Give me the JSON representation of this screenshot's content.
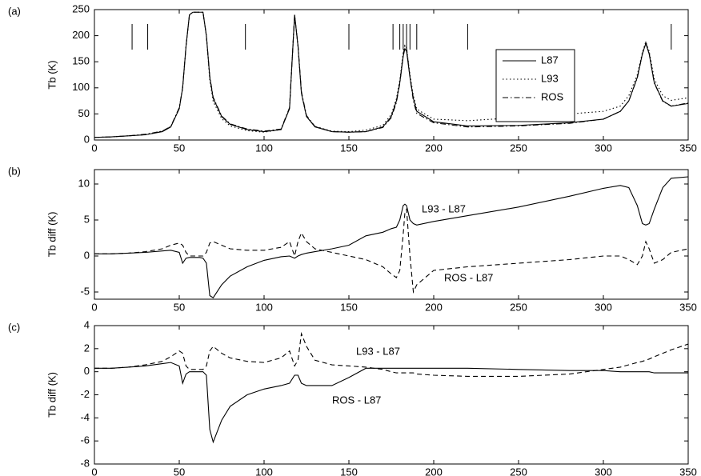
{
  "chart_data": [
    {
      "type": "line",
      "panel_label": "(a)",
      "ylabel": "Tb (K)",
      "x": [
        0,
        10,
        20,
        30,
        40,
        45,
        50,
        52,
        54,
        56,
        58,
        60,
        62,
        64,
        66,
        68,
        70,
        75,
        80,
        90,
        100,
        110,
        115,
        118,
        120,
        122,
        125,
        130,
        140,
        150,
        160,
        170,
        175,
        178,
        180,
        182,
        183,
        184,
        186,
        188,
        190,
        200,
        220,
        250,
        280,
        300,
        310,
        315,
        320,
        323,
        325,
        327,
        330,
        335,
        340,
        350
      ],
      "series": [
        {
          "name": "L87",
          "color": "#000000",
          "style": "solid",
          "values": [
            5,
            6,
            8,
            10,
            16,
            25,
            60,
            100,
            180,
            240,
            245,
            245,
            245,
            245,
            200,
            120,
            80,
            45,
            30,
            20,
            16,
            20,
            60,
            240,
            180,
            90,
            45,
            25,
            16,
            15,
            16,
            25,
            45,
            75,
            110,
            160,
            175,
            170,
            120,
            80,
            55,
            35,
            27,
            28,
            33,
            40,
            55,
            75,
            120,
            165,
            185,
            165,
            110,
            75,
            65,
            70
          ]
        },
        {
          "name": "L93",
          "color": "#000000",
          "style": "dotted",
          "values": [
            5,
            6,
            8,
            10,
            17,
            26,
            60,
            99,
            180,
            240,
            245,
            245,
            245,
            245,
            199,
            115,
            74,
            41,
            27,
            18,
            15,
            20,
            60,
            240,
            180,
            90,
            45,
            26,
            17,
            16,
            19,
            28,
            49,
            79,
            115,
            167,
            182,
            177,
            125,
            85,
            59,
            40,
            37,
            43,
            50,
            55,
            65,
            85,
            125,
            168,
            188,
            170,
            117,
            85,
            76,
            81
          ]
        },
        {
          "name": "ROS",
          "color": "#000000",
          "style": "dashdot",
          "values": [
            5,
            6,
            8,
            11,
            17,
            26,
            62,
            101,
            180,
            240,
            245,
            245,
            245,
            245,
            200,
            122,
            82,
            46,
            31,
            21,
            17,
            21,
            62,
            240,
            182,
            93,
            47,
            26,
            16,
            15,
            16,
            24,
            43,
            72,
            108,
            163,
            181,
            176,
            120,
            75,
            51,
            33,
            25,
            27,
            32,
            40,
            55,
            75,
            119,
            165,
            187,
            166,
            109,
            74,
            65,
            71
          ]
        }
      ],
      "freq_marks": [
        22.2,
        31.4,
        89,
        150,
        176,
        180,
        182,
        184,
        186,
        190,
        220,
        340
      ],
      "legend": "right",
      "xlim": [
        0,
        350
      ],
      "ylim": [
        0,
        250
      ],
      "xticks": [
        0,
        50,
        100,
        150,
        200,
        250,
        300,
        350
      ],
      "yticks": [
        0,
        50,
        100,
        150,
        200,
        250
      ]
    },
    {
      "type": "line",
      "panel_label": "(b)",
      "ylabel": "Tb diff (K)",
      "x": [
        0,
        10,
        20,
        30,
        40,
        45,
        50,
        52,
        54,
        56,
        58,
        60,
        62,
        64,
        66,
        68,
        70,
        75,
        80,
        90,
        100,
        110,
        115,
        118,
        120,
        122,
        125,
        130,
        140,
        150,
        160,
        170,
        175,
        178,
        180,
        182,
        183,
        184,
        186,
        188,
        190,
        200,
        220,
        250,
        280,
        300,
        310,
        315,
        320,
        323,
        325,
        327,
        330,
        335,
        340,
        350
      ],
      "series": [
        {
          "color": "#000000",
          "style": "solid",
          "values": [
            0.3,
            0.3,
            0.4,
            0.5,
            0.7,
            0.8,
            0.5,
            -1,
            -0.3,
            -0.2,
            -0.2,
            -0.2,
            -0.2,
            -0.3,
            -1,
            -5.5,
            -5.8,
            -4,
            -2.8,
            -1.5,
            -0.6,
            -0.1,
            0,
            -0.3,
            0,
            0.2,
            0.4,
            0.6,
            1,
            1.5,
            2.8,
            3.3,
            3.8,
            4,
            5,
            7,
            7.2,
            7,
            5,
            4.5,
            4.3,
            4.8,
            5.6,
            6.8,
            8.3,
            9.4,
            9.8,
            9.5,
            7,
            4.5,
            4.3,
            4.5,
            6.5,
            9.5,
            10.8,
            11
          ]
        },
        {
          "color": "#000000",
          "style": "dashed",
          "values": [
            0.3,
            0.3,
            0.4,
            0.6,
            1,
            1.5,
            1.8,
            1.5,
            0.5,
            0,
            0,
            0,
            0,
            0,
            0.5,
            1.8,
            2,
            1.5,
            1,
            0.8,
            0.8,
            1.2,
            2,
            0,
            2,
            3.2,
            2,
            1,
            0.5,
            0,
            -0.5,
            -1.5,
            -2.5,
            -3,
            -2,
            3,
            6,
            6.5,
            0,
            -5,
            -4,
            -2,
            -1.5,
            -1,
            -0.5,
            0,
            0,
            -0.5,
            -1.2,
            0,
            2,
            1,
            -1,
            -0.5,
            0.5,
            1
          ]
        }
      ],
      "annotations": [
        "L93 - L87",
        "ROS - L87"
      ],
      "xlim": [
        0,
        350
      ],
      "ylim": [
        -6,
        12
      ],
      "xticks": [
        0,
        50,
        100,
        150,
        200,
        250,
        300,
        350
      ],
      "yticks": [
        -5,
        0,
        5,
        10
      ]
    },
    {
      "type": "line",
      "panel_label": "(c)",
      "ylabel": "Tb diff (K)",
      "x": [
        0,
        10,
        20,
        30,
        40,
        45,
        50,
        52,
        54,
        56,
        58,
        60,
        62,
        64,
        66,
        68,
        70,
        75,
        80,
        90,
        100,
        110,
        115,
        118,
        120,
        122,
        125,
        130,
        140,
        150,
        160,
        170,
        175,
        178,
        180,
        182,
        183,
        184,
        186,
        188,
        190,
        200,
        220,
        250,
        280,
        300,
        310,
        315,
        320,
        323,
        325,
        327,
        330,
        335,
        340,
        350
      ],
      "series": [
        {
          "color": "#000000",
          "style": "dashed",
          "values": [
            0.3,
            0.3,
            0.4,
            0.6,
            0.9,
            1.3,
            1.8,
            1.6,
            0.5,
            0.2,
            0.2,
            0.2,
            0.2,
            0.2,
            0.5,
            1.8,
            2.2,
            1.6,
            1.2,
            0.9,
            0.8,
            1.2,
            1.8,
            0.5,
            1,
            3.3,
            2.2,
            1,
            0.6,
            0.5,
            0.4,
            0.2,
            0,
            -0.1,
            -0.1,
            -0.1,
            -0.1,
            -0.1,
            -0.1,
            -0.1,
            -0.2,
            -0.3,
            -0.4,
            -0.4,
            -0.2,
            0.2,
            0.4,
            0.6,
            0.8,
            0.9,
            1,
            1.1,
            1.3,
            1.6,
            1.9,
            2.4
          ]
        },
        {
          "color": "#000000",
          "style": "solid",
          "values": [
            0.3,
            0.3,
            0.4,
            0.5,
            0.7,
            0.8,
            0.5,
            -1,
            -0.2,
            0,
            0,
            0,
            0,
            0,
            -0.3,
            -5,
            -6.1,
            -4.2,
            -3,
            -2,
            -1.5,
            -1.2,
            -1,
            -0.3,
            -0.3,
            -1,
            -1.2,
            -1.2,
            -1.2,
            -0.5,
            0.3,
            0.3,
            0.3,
            0.3,
            0.3,
            0.3,
            0.3,
            0.3,
            0.3,
            0.3,
            0.3,
            0.3,
            0.3,
            0.2,
            0.1,
            0.1,
            0,
            0,
            0,
            0,
            0,
            0,
            -0.1,
            -0.1,
            -0.1,
            -0.1
          ]
        }
      ],
      "annotations": [
        "L93 - L87",
        "ROS - L87"
      ],
      "xlim": [
        0,
        350
      ],
      "ylim": [
        -8,
        4
      ],
      "xticks": [
        0,
        50,
        100,
        150,
        200,
        250,
        300,
        350
      ],
      "yticks": [
        -8,
        -6,
        -4,
        -2,
        0,
        2,
        4
      ]
    }
  ]
}
